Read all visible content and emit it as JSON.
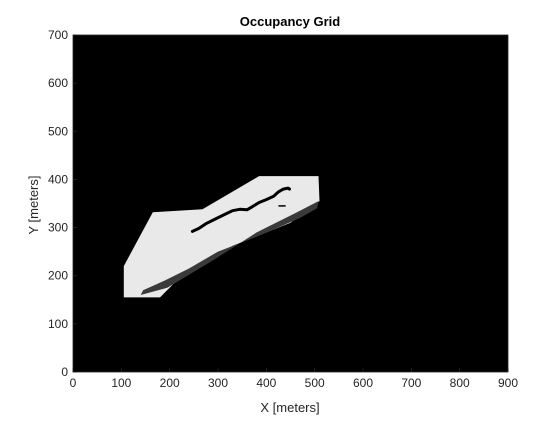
{
  "chart_data": {
    "type": "heatmap",
    "title": "Occupancy Grid",
    "xlabel": "X [meters]",
    "ylabel": "Y [meters]",
    "xlim": [
      0,
      900
    ],
    "ylim": [
      0,
      700
    ],
    "xticks": [
      0,
      100,
      200,
      300,
      400,
      500,
      600,
      700,
      800,
      900
    ],
    "yticks": [
      0,
      100,
      200,
      300,
      400,
      500,
      600,
      700
    ],
    "colormap": "grayscale (white = free, black = occupied / unknown)",
    "background_color": "#000000",
    "free_region": {
      "description": "light free-space region",
      "polygon": [
        [
          105,
          155
        ],
        [
          105,
          220
        ],
        [
          165,
          332
        ],
        [
          268,
          338
        ],
        [
          385,
          407
        ],
        [
          508,
          407
        ],
        [
          510,
          355
        ],
        [
          450,
          310
        ],
        [
          330,
          262
        ],
        [
          210,
          185
        ],
        [
          180,
          155
        ]
      ]
    },
    "shadow_region": {
      "description": "darker occupied band along lower edge",
      "polygon": [
        [
          140,
          160
        ],
        [
          195,
          175
        ],
        [
          290,
          232
        ],
        [
          380,
          290
        ],
        [
          460,
          330
        ],
        [
          508,
          355
        ],
        [
          505,
          340
        ],
        [
          470,
          320
        ],
        [
          390,
          285
        ],
        [
          300,
          250
        ],
        [
          240,
          215
        ],
        [
          190,
          190
        ],
        [
          145,
          170
        ]
      ]
    },
    "path": {
      "description": "robot trajectory",
      "color": "#000000",
      "points": [
        [
          247,
          292
        ],
        [
          260,
          298
        ],
        [
          275,
          308
        ],
        [
          295,
          318
        ],
        [
          315,
          328
        ],
        [
          330,
          335
        ],
        [
          345,
          338
        ],
        [
          360,
          337
        ],
        [
          372,
          344
        ],
        [
          385,
          352
        ],
        [
          400,
          358
        ],
        [
          415,
          365
        ],
        [
          425,
          374
        ],
        [
          435,
          380
        ],
        [
          445,
          382
        ],
        [
          448,
          380
        ]
      ]
    },
    "marker": {
      "description": "small dash mark",
      "segment": [
        [
          425,
          345
        ],
        [
          440,
          345
        ]
      ]
    }
  }
}
